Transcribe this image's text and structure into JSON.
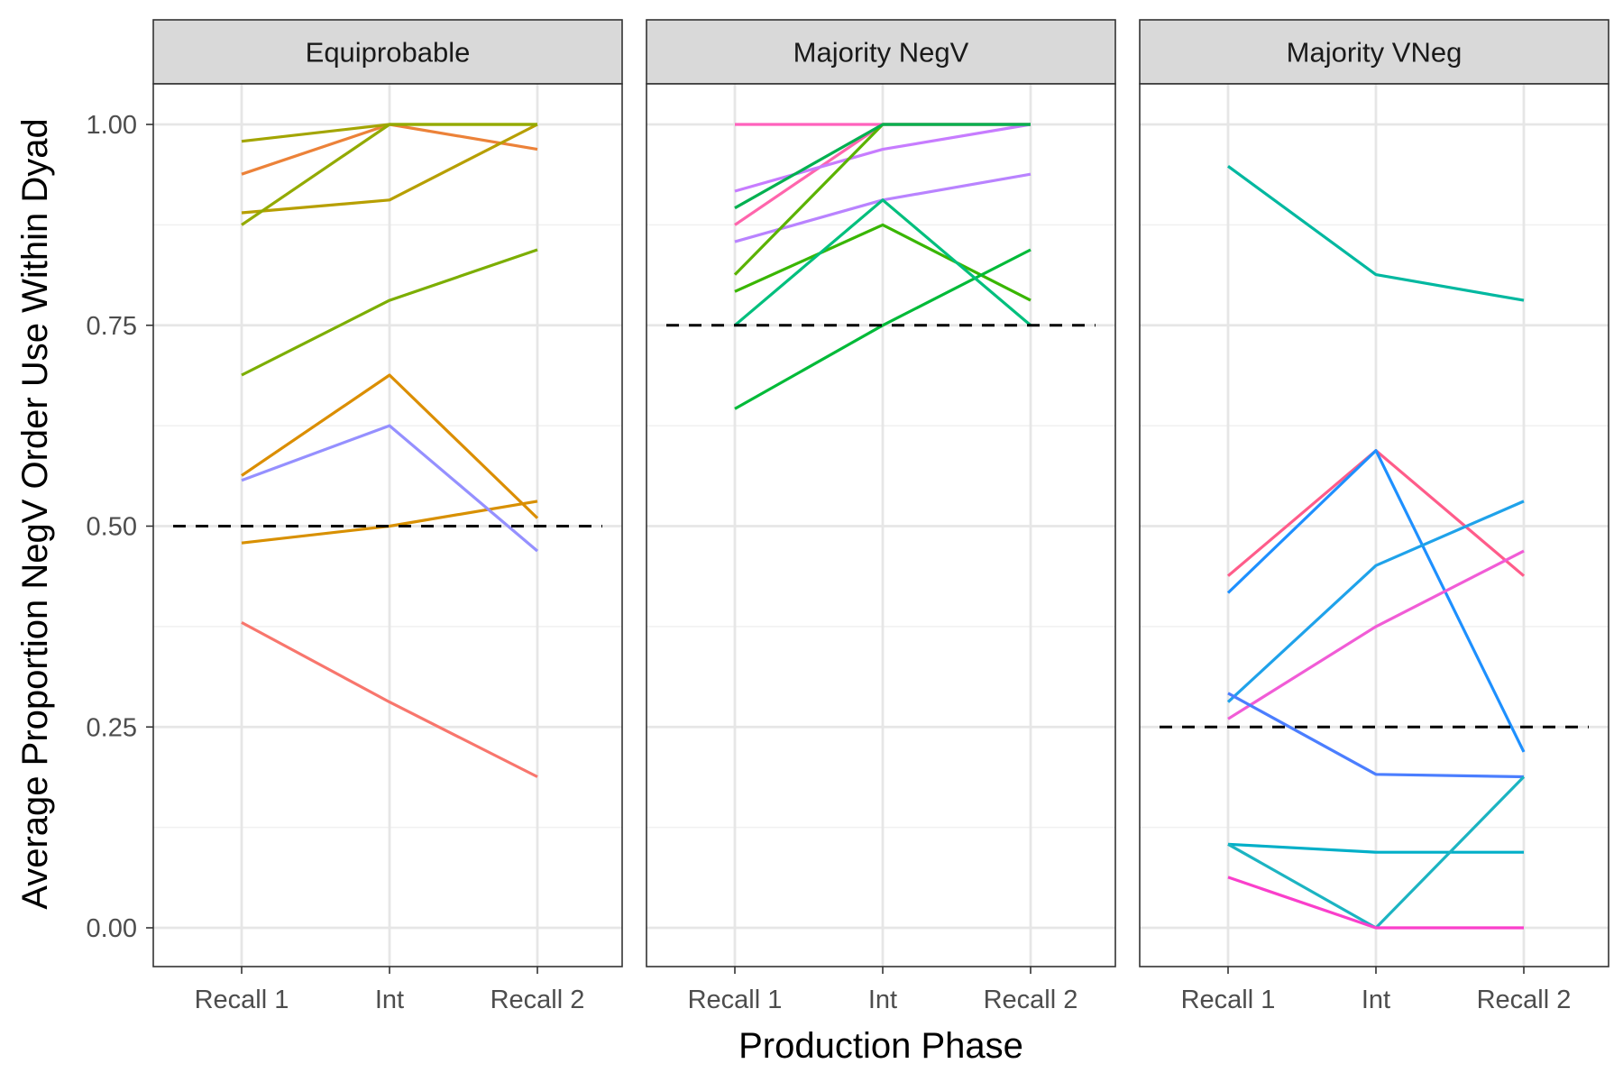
{
  "chart_data": {
    "type": "line",
    "xlabel": "Production Phase",
    "ylabel": "Average Proportion NegV Order Use Within Dyad",
    "categories": [
      "Recall 1",
      "Int",
      "Recall 2"
    ],
    "ylim": [
      -0.06,
      1.05
    ],
    "yticks": [
      0,
      0.25,
      0.5,
      0.75,
      1
    ],
    "ytick_labels": [
      "0.00",
      "0.25",
      "0.50",
      "0.75",
      "1.00"
    ],
    "grid": true,
    "legend": "none",
    "panels": [
      {
        "title": "Equiprobable",
        "reference_line": 0.5,
        "series": [
          {
            "color": "#F8766D",
            "values": [
              0.38,
              0.281,
              0.188
            ]
          },
          {
            "color": "#EC8239",
            "values": [
              0.938,
              1.0,
              0.969
            ]
          },
          {
            "color": "#D89000",
            "values": [
              0.479,
              0.5,
              0.531
            ]
          },
          {
            "color": "#DB8E00",
            "values": [
              0.563,
              0.688,
              0.51
            ]
          },
          {
            "color": "#B79F00",
            "values": [
              0.89,
              0.906,
              1.0
            ]
          },
          {
            "color": "#A3A500",
            "values": [
              0.979,
              1.0,
              1.0
            ]
          },
          {
            "color": "#93AA00",
            "values": [
              0.875,
              1.0,
              1.0
            ]
          },
          {
            "color": "#7CAE00",
            "values": [
              0.688,
              0.781,
              0.844
            ]
          },
          {
            "color": "#9590FF",
            "values": [
              0.557,
              0.625,
              0.469
            ]
          }
        ]
      },
      {
        "title": "Majority NegV",
        "reference_line": 0.75,
        "series": [
          {
            "color": "#FF62BC",
            "values": [
              1.0,
              1.0,
              1.0
            ]
          },
          {
            "color": "#FF65AC",
            "values": [
              0.875,
              1.0,
              1.0
            ]
          },
          {
            "color": "#C77CFF",
            "values": [
              0.917,
              0.969,
              1.0
            ]
          },
          {
            "color": "#B983FF",
            "values": [
              0.854,
              0.906,
              0.938
            ]
          },
          {
            "color": "#5BB300",
            "values": [
              0.813,
              1.0,
              1.0
            ]
          },
          {
            "color": "#00B050",
            "values": [
              0.896,
              1.0,
              1.0
            ]
          },
          {
            "color": "#39B600",
            "values": [
              0.792,
              0.875,
              0.781
            ]
          },
          {
            "color": "#00BA38",
            "values": [
              0.646,
              0.75,
              0.844
            ]
          },
          {
            "color": "#00BF7D",
            "values": [
              0.75,
              0.906,
              0.75
            ]
          }
        ]
      },
      {
        "title": "Majority VNeg",
        "reference_line": 0.25,
        "series": [
          {
            "color": "#00B8A0",
            "values": [
              0.948,
              0.813,
              0.781
            ]
          },
          {
            "color": "#FF5C8A",
            "values": [
              0.438,
              0.594,
              0.438
            ]
          },
          {
            "color": "#1E90FF",
            "values": [
              0.417,
              0.594,
              0.219
            ]
          },
          {
            "color": "#1FA2EA",
            "values": [
              0.281,
              0.451,
              0.531
            ]
          },
          {
            "color": "#F15CD6",
            "values": [
              0.26,
              0.375,
              0.469
            ]
          },
          {
            "color": "#4B7EFF",
            "values": [
              0.292,
              0.191,
              0.188
            ]
          },
          {
            "color": "#00AFC8",
            "values": [
              0.104,
              0.094,
              0.094
            ]
          },
          {
            "color": "#1CB4C2",
            "values": [
              0.104,
              0.0,
              0.188
            ]
          },
          {
            "color": "#FA3FCB",
            "values": [
              0.063,
              0.0,
              0.0
            ]
          }
        ]
      }
    ]
  }
}
